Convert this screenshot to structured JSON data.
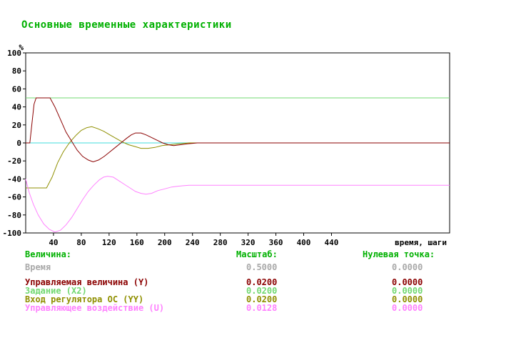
{
  "title": "Основные временные характеристики",
  "colors": {
    "heading_green": "#00b000",
    "setpoint_green": "#70d870",
    "zero_line_cyan": "#40dddd",
    "controlled_maroon": "#8b0000",
    "feedback_olive": "#8f8f00",
    "control_magenta": "#ff82ff",
    "time_gray": "#a9a9a9",
    "axis_black": "#000000"
  },
  "chart_data": {
    "type": "line",
    "title": "Основные временные характеристики",
    "xlabel": "время, шаги",
    "ylabel": "%",
    "unit_label": "%",
    "xlim": [
      0,
      610
    ],
    "ylim": [
      -100,
      100
    ],
    "grid": false,
    "x_ticks": [
      40,
      80,
      120,
      160,
      200,
      240,
      280,
      320,
      360,
      400,
      440
    ],
    "y_ticks": [
      100,
      80,
      60,
      40,
      20,
      0,
      -20,
      -40,
      -60,
      -80,
      -100
    ],
    "zero_line": {
      "y": 0,
      "color": "#40dddd"
    },
    "series": [
      {
        "id": "x2",
        "name": "Задание (X2)",
        "color": "#70d870",
        "points": [
          [
            0,
            50
          ],
          [
            610,
            50
          ]
        ]
      },
      {
        "id": "yy",
        "name": "Вход регулятора ОС (YY)",
        "color": "#8f8f00",
        "points": [
          [
            0,
            -50
          ],
          [
            30,
            -50
          ],
          [
            38,
            -38
          ],
          [
            46,
            -22
          ],
          [
            54,
            -10
          ],
          [
            61,
            -2
          ],
          [
            66,
            3
          ],
          [
            73,
            9
          ],
          [
            80,
            14
          ],
          [
            88,
            17
          ],
          [
            95,
            18
          ],
          [
            103,
            16
          ],
          [
            112,
            13
          ],
          [
            121,
            9
          ],
          [
            130,
            5
          ],
          [
            139,
            1
          ],
          [
            148,
            -2
          ],
          [
            157,
            -4
          ],
          [
            166,
            -6
          ],
          [
            176,
            -6
          ],
          [
            186,
            -5
          ],
          [
            196,
            -3
          ],
          [
            208,
            -2
          ],
          [
            220,
            -1
          ],
          [
            235,
            0
          ],
          [
            610,
            0
          ]
        ]
      },
      {
        "id": "y",
        "name": "Управляемая величина (Y)",
        "color": "#8b0000",
        "points": [
          [
            0,
            0
          ],
          [
            6,
            0
          ],
          [
            9,
            22
          ],
          [
            12,
            43
          ],
          [
            15,
            50
          ],
          [
            35,
            50
          ],
          [
            42,
            40
          ],
          [
            50,
            26
          ],
          [
            58,
            12
          ],
          [
            66,
            2
          ],
          [
            74,
            -8
          ],
          [
            82,
            -15
          ],
          [
            90,
            -19
          ],
          [
            97,
            -21
          ],
          [
            105,
            -19
          ],
          [
            113,
            -15
          ],
          [
            121,
            -10
          ],
          [
            129,
            -5
          ],
          [
            137,
            0
          ],
          [
            145,
            5
          ],
          [
            152,
            9
          ],
          [
            158,
            11
          ],
          [
            166,
            11
          ],
          [
            173,
            9
          ],
          [
            181,
            6
          ],
          [
            189,
            3
          ],
          [
            197,
            0
          ],
          [
            205,
            -2
          ],
          [
            213,
            -3
          ],
          [
            223,
            -2
          ],
          [
            233,
            -1
          ],
          [
            247,
            0
          ],
          [
            610,
            0
          ]
        ]
      },
      {
        "id": "u",
        "name": "Управляющее воздействие (U)",
        "color": "#ff82ff",
        "points": [
          [
            0,
            -40
          ],
          [
            5,
            -55
          ],
          [
            11,
            -68
          ],
          [
            18,
            -80
          ],
          [
            26,
            -90
          ],
          [
            34,
            -96
          ],
          [
            42,
            -99
          ],
          [
            50,
            -97
          ],
          [
            58,
            -91
          ],
          [
            66,
            -83
          ],
          [
            74,
            -73
          ],
          [
            82,
            -63
          ],
          [
            90,
            -54
          ],
          [
            98,
            -47
          ],
          [
            106,
            -41
          ],
          [
            112,
            -38
          ],
          [
            118,
            -37
          ],
          [
            126,
            -38
          ],
          [
            134,
            -42
          ],
          [
            142,
            -46
          ],
          [
            150,
            -50
          ],
          [
            158,
            -54
          ],
          [
            166,
            -56
          ],
          [
            173,
            -57
          ],
          [
            181,
            -56
          ],
          [
            190,
            -53
          ],
          [
            200,
            -51
          ],
          [
            210,
            -49
          ],
          [
            220,
            -48
          ],
          [
            235,
            -47
          ],
          [
            255,
            -47
          ],
          [
            610,
            -47
          ]
        ]
      }
    ]
  },
  "legend": {
    "headers": {
      "value": "Величина:",
      "scale": "Масштаб:",
      "zero": "Нулевая точка:"
    },
    "rows": [
      {
        "label": "Время",
        "scale": "0.5000",
        "zero": "0.0000",
        "color": "#a9a9a9",
        "gap_after": true
      },
      {
        "label": "Управляемая величина (Y)",
        "scale": "0.0200",
        "zero": "0.0000",
        "color": "#8b0000"
      },
      {
        "label": "Задание (X2)",
        "scale": "0.0200",
        "zero": "0.0000",
        "color": "#70d870"
      },
      {
        "label": "Вход регулятора ОС (YY)",
        "scale": "0.0200",
        "zero": "0.0000",
        "color": "#8f8f00"
      },
      {
        "label": "Управляющее воздействие (U)",
        "scale": "0.0128",
        "zero": "0.0000",
        "color": "#ff82ff"
      }
    ]
  }
}
